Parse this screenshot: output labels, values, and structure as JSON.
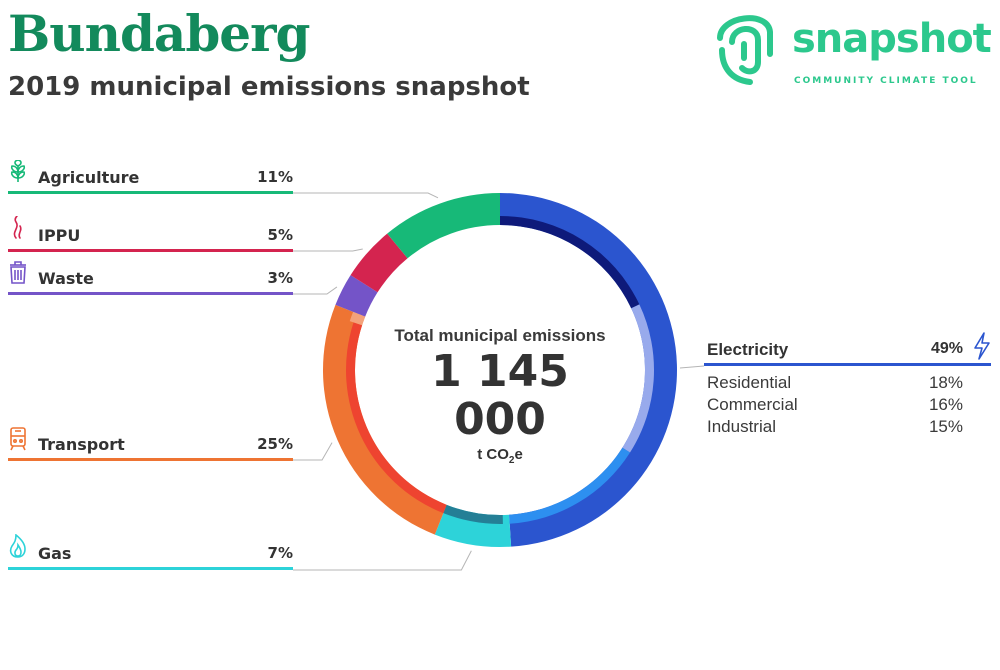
{
  "header": {
    "title": "Bundaberg",
    "subtitle": "2019 municipal emissions snapshot"
  },
  "logo": {
    "word": "snapshot",
    "tagline": "COMMUNITY CLIMATE TOOL",
    "color": "#2cc88d"
  },
  "center": {
    "label": "Total municipal emissions",
    "value": "1 145 000",
    "unit_main": "t CO",
    "unit_sub": "2",
    "unit_tail": "e"
  },
  "sectors": [
    {
      "name": "Agriculture",
      "pct": "11%",
      "color": "#17b978",
      "icon": "wheat-icon"
    },
    {
      "name": "IPPU",
      "pct": "5%",
      "color": "#d4244f",
      "icon": "smoke-icon"
    },
    {
      "name": "Waste",
      "pct": "3%",
      "color": "#7454c8",
      "icon": "bin-icon"
    },
    {
      "name": "Transport",
      "pct": "25%",
      "color": "#ee7433",
      "icon": "train-icon"
    },
    {
      "name": "Gas",
      "pct": "7%",
      "color": "#2dd3d9",
      "icon": "flame-icon"
    }
  ],
  "electricity": {
    "label": "Electricity",
    "pct": "49%",
    "color": "#2b55cf",
    "icon": "lightning-icon",
    "breakdown": [
      {
        "name": "Residential",
        "pct": "18%"
      },
      {
        "name": "Commercial",
        "pct": "16%"
      },
      {
        "name": "Industrial",
        "pct": "15%"
      }
    ]
  },
  "chart_data": {
    "type": "pie",
    "title": "2019 municipal emissions snapshot",
    "total": 1145000,
    "unit": "t CO2e",
    "slices": [
      {
        "name": "Electricity",
        "value": 49,
        "color": "#2b55cf"
      },
      {
        "name": "Gas",
        "value": 7,
        "color": "#2dd3d9"
      },
      {
        "name": "Transport",
        "value": 25,
        "color": "#ee7433"
      },
      {
        "name": "Waste",
        "value": 3,
        "color": "#7454c8"
      },
      {
        "name": "IPPU",
        "value": 5,
        "color": "#d4244f"
      },
      {
        "name": "Agriculture",
        "value": 11,
        "color": "#17b978"
      }
    ],
    "sub_breakdown": {
      "Electricity": [
        {
          "name": "Residential",
          "value": 18
        },
        {
          "name": "Commercial",
          "value": 16
        },
        {
          "name": "Industrial",
          "value": 15
        }
      ]
    }
  }
}
